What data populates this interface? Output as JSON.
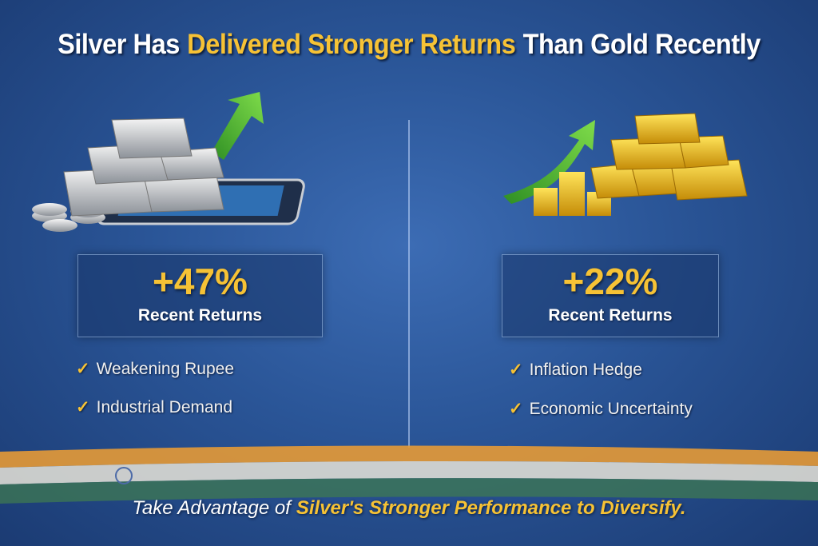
{
  "header": {
    "title": {
      "lead": "Silver Has",
      "highlight": "Delivered Stronger Returns",
      "tail": "Than Gold Recently"
    }
  },
  "panels": [
    {
      "value": "+47%",
      "label": "Recent Returns",
      "points": [
        "Weakening Rupee",
        "Industrial Demand"
      ]
    },
    {
      "value": "+22%",
      "label": "Recent Returns",
      "points": [
        "Inflation Hedge",
        "Economic Uncertainty"
      ]
    }
  ],
  "footer": {
    "lead": "Take Advantage of",
    "highlight": "Silver's Stronger Performance to Diversify."
  }
}
